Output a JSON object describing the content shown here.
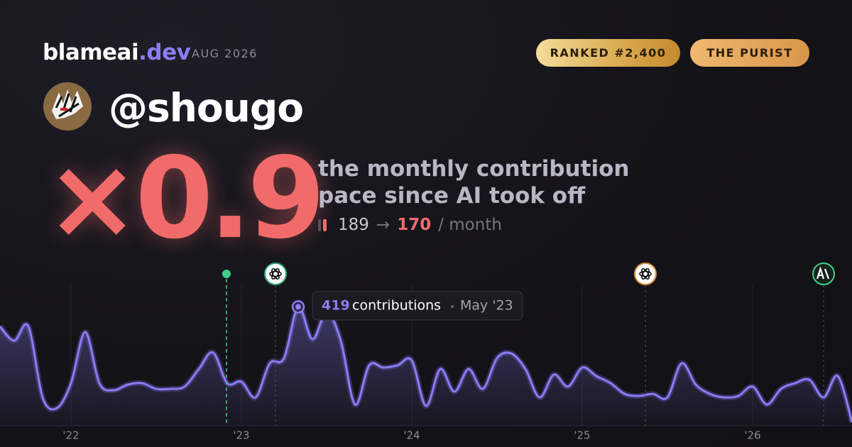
{
  "header": {
    "brand": "blameai",
    "brand_tld": ".dev",
    "date": "AUG 2026",
    "badges": [
      "RANKED #2,400",
      "THE PURIST"
    ]
  },
  "user": {
    "handle": "@shougo"
  },
  "headline": {
    "multiplier": "×0.9",
    "description": [
      "the monthly contribution",
      "pace since AI took off"
    ],
    "stats": {
      "before": 189,
      "arrow": "→",
      "after": 170,
      "unit": "/ month"
    }
  },
  "chart_data": {
    "type": "line",
    "color": "#8b7cf6",
    "categories": [
      null,
      null,
      null,
      null,
      null,
      "'22",
      null,
      null,
      null,
      null,
      null,
      null,
      null,
      null,
      null,
      null,
      null,
      "'23",
      null,
      null,
      null,
      null,
      null,
      null,
      null,
      null,
      null,
      null,
      null,
      "'24",
      null,
      null,
      null,
      null,
      null,
      null,
      null,
      null,
      null,
      null,
      null,
      "'25",
      null,
      null,
      null,
      null,
      null,
      null,
      null,
      null,
      null,
      null,
      null,
      "'26",
      null,
      null,
      null,
      null,
      null,
      null,
      null
    ],
    "values": [
      350,
      300,
      350,
      100,
      62,
      150,
      330,
      150,
      125,
      145,
      150,
      130,
      130,
      138,
      200,
      258,
      150,
      155,
      100,
      220,
      238,
      419,
      305,
      400,
      300,
      75,
      213,
      205,
      213,
      230,
      70,
      200,
      120,
      200,
      130,
      238,
      255,
      200,
      100,
      180,
      138,
      205,
      175,
      150,
      112,
      105,
      112,
      100,
      220,
      145,
      112,
      100,
      105,
      138,
      75,
      130,
      150,
      162,
      100,
      175,
      12
    ],
    "ylim": [
      0,
      500
    ],
    "tooltip": {
      "value": 419,
      "label": "contributions",
      "date": "May '23"
    }
  }
}
